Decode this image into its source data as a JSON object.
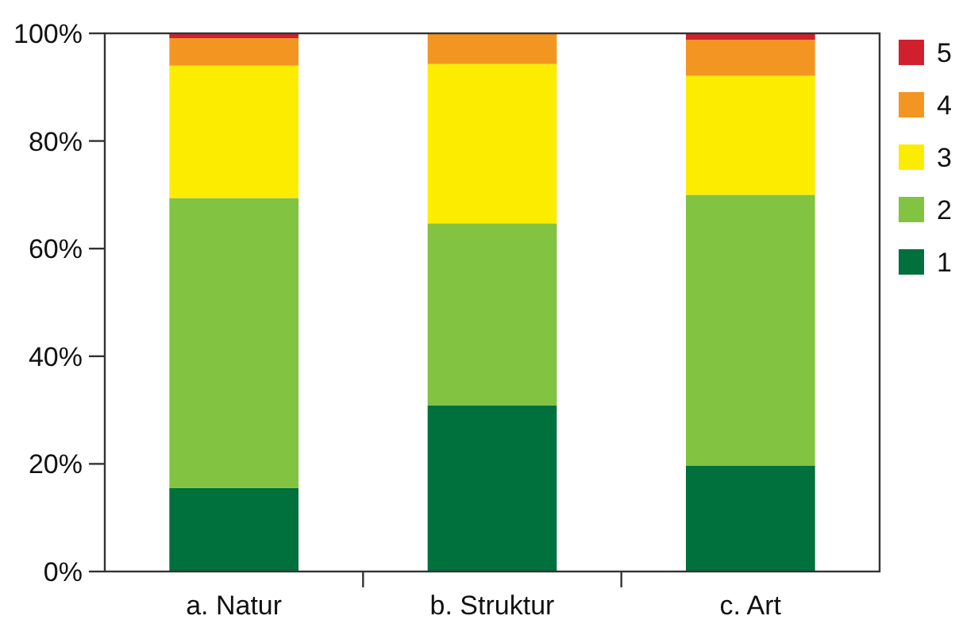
{
  "chart_data": {
    "type": "bar",
    "stacked": true,
    "categories": [
      "a. Natur",
      "b. Struktur",
      "c. Art"
    ],
    "series": [
      {
        "name": "1",
        "color": "#00703c",
        "values": [
          15.5,
          30.9,
          19.7
        ]
      },
      {
        "name": "2",
        "color": "#82c341",
        "values": [
          53.9,
          33.8,
          50.3
        ]
      },
      {
        "name": "3",
        "color": "#fcec00",
        "values": [
          24.6,
          29.6,
          22.1
        ]
      },
      {
        "name": "4",
        "color": "#f39621",
        "values": [
          5.1,
          5.7,
          6.7
        ]
      },
      {
        "name": "5",
        "color": "#d0202e",
        "values": [
          0.9,
          0,
          1.2
        ]
      }
    ],
    "ylim": [
      0,
      100
    ],
    "yticks": [
      {
        "value": 0,
        "label": "0%"
      },
      {
        "value": 20,
        "label": "20%"
      },
      {
        "value": 40,
        "label": "40%"
      },
      {
        "value": 60,
        "label": "60%"
      },
      {
        "value": 80,
        "label": "80%"
      },
      {
        "value": 100,
        "label": "100%"
      }
    ],
    "legend": "right",
    "grid": false
  }
}
